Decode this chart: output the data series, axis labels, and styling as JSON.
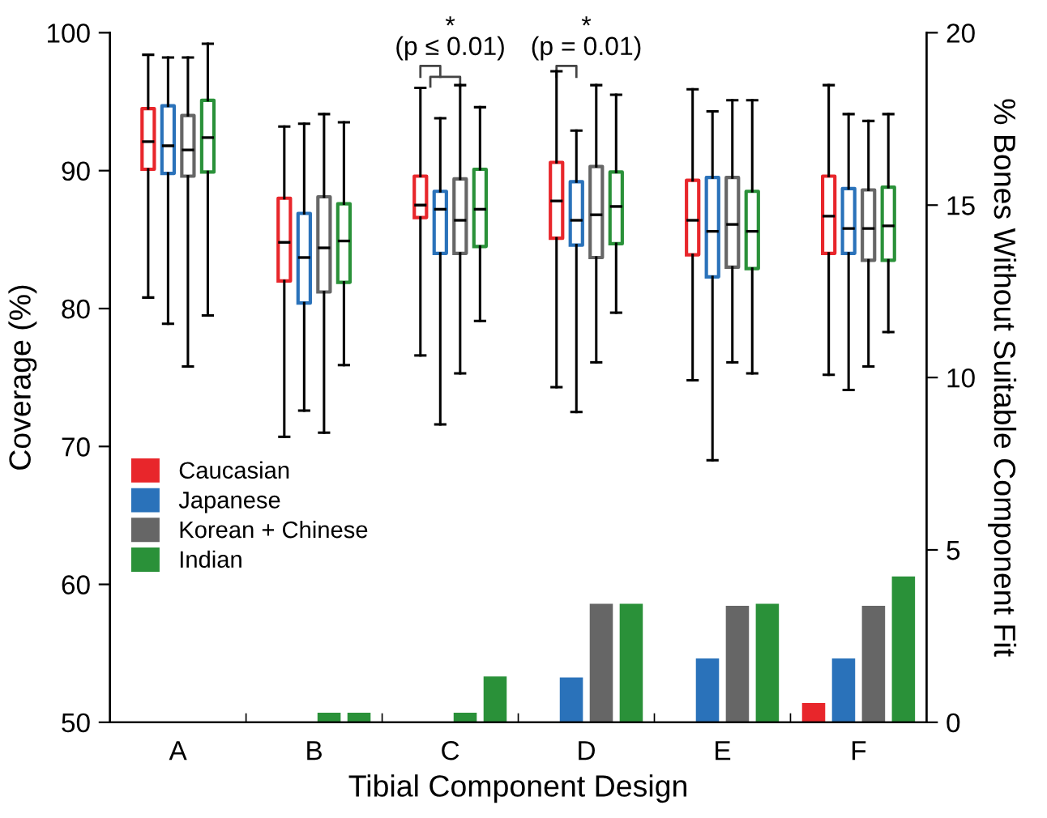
{
  "chart_data": {
    "type": "box",
    "xlabel": "Tibial Component Design",
    "ylabel": "Coverage (%)",
    "y2label": "% Bones Without Suitable Component Fit",
    "categories": [
      "A",
      "B",
      "C",
      "D",
      "E",
      "F"
    ],
    "ylim": [
      50,
      100
    ],
    "yticks": [
      50,
      60,
      70,
      80,
      90,
      100
    ],
    "y2lim": [
      0,
      20
    ],
    "y2ticks": [
      0,
      5,
      10,
      15,
      20
    ],
    "grid": false,
    "legend": "left",
    "series": [
      {
        "color": "#e8262b",
        "boxes": [
          {
            "low": 80.8,
            "q1": 90.1,
            "median": 92.1,
            "q3": 94.5,
            "high": 98.4
          },
          {
            "low": 70.7,
            "q1": 82.0,
            "median": 84.8,
            "q3": 88.0,
            "high": 93.2
          },
          {
            "low": 76.6,
            "q1": 86.6,
            "median": 87.5,
            "q3": 89.6,
            "high": 96.0
          },
          {
            "low": 74.3,
            "q1": 85.1,
            "median": 87.8,
            "q3": 90.6,
            "high": 97.2
          },
          {
            "low": 74.8,
            "q1": 83.9,
            "median": 86.4,
            "q3": 89.3,
            "high": 95.9
          },
          {
            "low": 75.2,
            "q1": 84.0,
            "median": 86.7,
            "q3": 89.6,
            "high": 96.2
          }
        ]
      },
      {
        "color": "#2a72ba",
        "boxes": [
          {
            "low": 78.9,
            "q1": 89.8,
            "median": 91.8,
            "q3": 94.7,
            "high": 98.2
          },
          {
            "low": 72.6,
            "q1": 80.4,
            "median": 83.7,
            "q3": 86.9,
            "high": 93.4
          },
          {
            "low": 71.6,
            "q1": 84.0,
            "median": 87.2,
            "q3": 88.5,
            "high": 93.8
          },
          {
            "low": 72.5,
            "q1": 84.6,
            "median": 86.4,
            "q3": 89.2,
            "high": 92.9
          },
          {
            "low": 69.0,
            "q1": 82.3,
            "median": 85.6,
            "q3": 89.5,
            "high": 94.3
          },
          {
            "low": 74.1,
            "q1": 84.0,
            "median": 85.8,
            "q3": 88.7,
            "high": 94.1
          }
        ]
      },
      {
        "color": "#666666",
        "boxes": [
          {
            "low": 75.8,
            "q1": 89.6,
            "median": 91.5,
            "q3": 94.0,
            "high": 98.2
          },
          {
            "low": 71.0,
            "q1": 81.2,
            "median": 84.4,
            "q3": 88.1,
            "high": 94.1
          },
          {
            "low": 75.3,
            "q1": 84.0,
            "median": 86.4,
            "q3": 89.4,
            "high": 96.2
          },
          {
            "low": 76.1,
            "q1": 83.7,
            "median": 86.8,
            "q3": 90.3,
            "high": 96.2
          },
          {
            "low": 76.1,
            "q1": 83.0,
            "median": 86.1,
            "q3": 89.5,
            "high": 95.1
          },
          {
            "low": 75.8,
            "q1": 83.5,
            "median": 85.8,
            "q3": 88.6,
            "high": 93.6
          }
        ]
      },
      {
        "color": "#2a9139",
        "boxes": [
          {
            "low": 79.5,
            "q1": 89.9,
            "median": 92.4,
            "q3": 95.1,
            "high": 99.2
          },
          {
            "low": 75.9,
            "q1": 81.9,
            "median": 84.9,
            "q3": 87.6,
            "high": 93.5
          },
          {
            "low": 79.1,
            "q1": 84.5,
            "median": 87.2,
            "q3": 90.1,
            "high": 94.6
          },
          {
            "low": 79.7,
            "q1": 84.7,
            "median": 87.4,
            "q3": 89.9,
            "high": 95.5
          },
          {
            "low": 75.3,
            "q1": 82.9,
            "median": 85.6,
            "q3": 88.5,
            "high": 95.1
          },
          {
            "low": 78.3,
            "q1": 83.5,
            "median": 86.0,
            "q3": 88.8,
            "high": 94.1
          }
        ]
      },
      {
        "type": "bar",
        "axis": "y2",
        "name": "Caucasian",
        "color": "#e8262b",
        "values": [
          0,
          0,
          0,
          0,
          0,
          0.56
        ]
      },
      {
        "type": "bar",
        "axis": "y2",
        "name": "Japanese",
        "color": "#2a72ba",
        "values": [
          0,
          0,
          0,
          1.3,
          1.85,
          1.85
        ]
      },
      {
        "type": "bar",
        "axis": "y2",
        "name": "Korean + Chinese",
        "color": "#666666",
        "colors": [
          "#666666",
          "#2a9139",
          "#2a9139",
          "#666666",
          "#666666",
          "#666666"
        ],
        "values": [
          0,
          0.28,
          0.28,
          3.44,
          3.38,
          3.38
        ]
      },
      {
        "type": "bar",
        "axis": "y2",
        "name": "Indian",
        "color": "#2a9139",
        "values": [
          0,
          0.28,
          1.33,
          3.44,
          3.44,
          4.23
        ]
      }
    ],
    "annotations": [
      "(p ≤ 0.01)",
      "*",
      "(p = 0.01)",
      "*"
    ]
  }
}
